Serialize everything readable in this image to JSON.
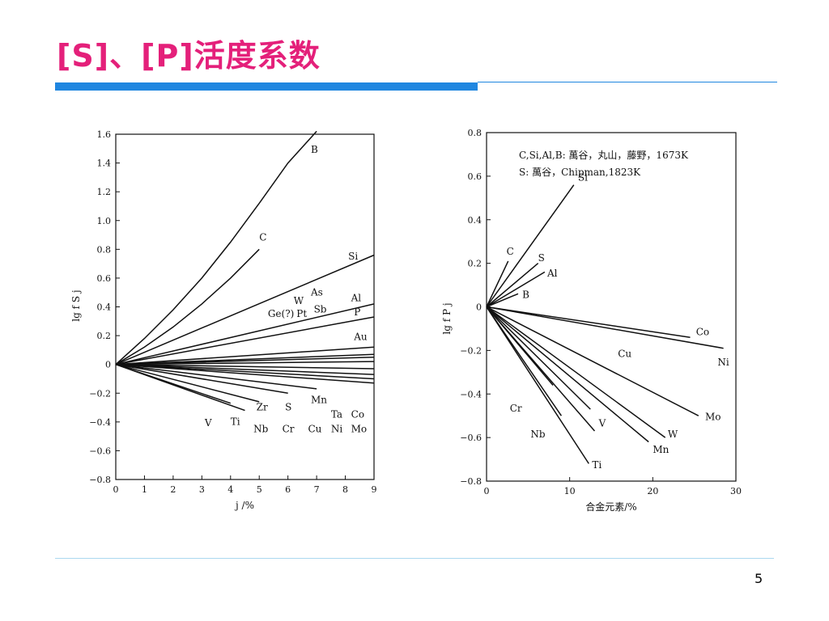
{
  "slide": {
    "title": "[S]、[P]活度系数",
    "page_number": "5",
    "accent_color": "#e4207a",
    "bar_color": "#1f86e0"
  },
  "chart_data": [
    {
      "type": "line",
      "ylabel": "lg f S j",
      "xlabel": "j /%",
      "xlim": [
        0,
        9
      ],
      "ylim": [
        -0.8,
        1.6
      ],
      "x_ticks": [
        0,
        1,
        2,
        3,
        4,
        5,
        6,
        7,
        8,
        9
      ],
      "y_ticks": [
        -0.8,
        -0.6,
        -0.4,
        -0.2,
        0,
        0.2,
        0.4,
        0.6,
        0.8,
        1.0,
        1.2,
        1.4,
        1.6
      ],
      "y_tick_labels": [
        "−0.8",
        "−0.6",
        "−0.4",
        "−0.2",
        "0",
        "0.2",
        "0.4",
        "0.6",
        "0.8",
        "1.0",
        "1.2",
        "1.4",
        "1.6"
      ],
      "series": [
        {
          "name": "B",
          "points": [
            [
              0,
              0
            ],
            [
              1,
              0.18
            ],
            [
              2,
              0.38
            ],
            [
              3,
              0.6
            ],
            [
              4,
              0.85
            ],
            [
              5,
              1.12
            ],
            [
              6,
              1.4
            ],
            [
              7,
              1.62
            ]
          ]
        },
        {
          "name": "C",
          "points": [
            [
              0,
              0
            ],
            [
              1,
              0.12
            ],
            [
              2,
              0.26
            ],
            [
              3,
              0.42
            ],
            [
              4,
              0.6
            ],
            [
              5,
              0.8
            ]
          ]
        },
        {
          "name": "Si",
          "points": [
            [
              0,
              0
            ],
            [
              9,
              0.76
            ]
          ]
        },
        {
          "name": "Al",
          "points": [
            [
              0,
              0
            ],
            [
              9,
              0.42
            ]
          ]
        },
        {
          "name": "P",
          "points": [
            [
              0,
              0
            ],
            [
              9,
              0.33
            ]
          ]
        },
        {
          "name": "Au",
          "points": [
            [
              0,
              0
            ],
            [
              9,
              0.12
            ]
          ]
        },
        {
          "name": "",
          "points": [
            [
              0,
              0
            ],
            [
              9,
              0.07
            ]
          ]
        },
        {
          "name": "",
          "points": [
            [
              0,
              0
            ],
            [
              9,
              0.05
            ]
          ]
        },
        {
          "name": "",
          "points": [
            [
              0,
              0
            ],
            [
              9,
              0.02
            ]
          ]
        },
        {
          "name": "",
          "points": [
            [
              0,
              0
            ],
            [
              9,
              -0.03
            ]
          ]
        },
        {
          "name": "Co",
          "points": [
            [
              0,
              0
            ],
            [
              9,
              -0.07
            ]
          ]
        },
        {
          "name": "",
          "points": [
            [
              0,
              0
            ],
            [
              9,
              -0.1
            ]
          ]
        },
        {
          "name": "Mo",
          "points": [
            [
              0,
              0
            ],
            [
              9,
              -0.13
            ]
          ]
        },
        {
          "name": "Mn",
          "points": [
            [
              0,
              0
            ],
            [
              7,
              -0.17
            ]
          ]
        },
        {
          "name": "S",
          "points": [
            [
              0,
              0
            ],
            [
              6,
              -0.2
            ]
          ]
        },
        {
          "name": "Zr",
          "points": [
            [
              0,
              0
            ],
            [
              5,
              -0.26
            ]
          ]
        },
        {
          "name": "Ti",
          "points": [
            [
              0,
              0
            ],
            [
              4.5,
              -0.32
            ]
          ]
        },
        {
          "name": "V",
          "points": [
            [
              0,
              0
            ],
            [
              4,
              -0.27
            ]
          ]
        }
      ],
      "labels": [
        {
          "text": "B",
          "x": 6.8,
          "y": 1.47
        },
        {
          "text": "C",
          "x": 5.0,
          "y": 0.86
        },
        {
          "text": "Si",
          "x": 8.1,
          "y": 0.73
        },
        {
          "text": "As",
          "x": 6.8,
          "y": 0.48
        },
        {
          "text": "W",
          "x": 6.2,
          "y": 0.42
        },
        {
          "text": "Al",
          "x": 8.2,
          "y": 0.44
        },
        {
          "text": "Ge(?)",
          "x": 5.3,
          "y": 0.33
        },
        {
          "text": "Pt",
          "x": 6.3,
          "y": 0.33
        },
        {
          "text": "Sb",
          "x": 6.9,
          "y": 0.36
        },
        {
          "text": "P",
          "x": 8.3,
          "y": 0.34
        },
        {
          "text": "Au",
          "x": 8.3,
          "y": 0.17
        },
        {
          "text": "Mn",
          "x": 6.8,
          "y": -0.27
        },
        {
          "text": "Zr",
          "x": 4.9,
          "y": -0.32
        },
        {
          "text": "S",
          "x": 5.9,
          "y": -0.32
        },
        {
          "text": "Ta",
          "x": 7.5,
          "y": -0.37
        },
        {
          "text": "Co",
          "x": 8.2,
          "y": -0.37
        },
        {
          "text": "V",
          "x": 3.1,
          "y": -0.43
        },
        {
          "text": "Ti",
          "x": 4.0,
          "y": -0.42
        },
        {
          "text": "Nb",
          "x": 4.8,
          "y": -0.47
        },
        {
          "text": "Cr",
          "x": 5.8,
          "y": -0.47
        },
        {
          "text": "Cu",
          "x": 6.7,
          "y": -0.47
        },
        {
          "text": "Ni",
          "x": 7.5,
          "y": -0.47
        },
        {
          "text": "Mo",
          "x": 8.2,
          "y": -0.47
        }
      ]
    },
    {
      "type": "line",
      "ylabel": "lg f P j",
      "xlabel": "合金元素/%",
      "xlim": [
        0,
        30
      ],
      "ylim": [
        -0.8,
        0.8
      ],
      "x_ticks": [
        0,
        10,
        20,
        30
      ],
      "y_ticks": [
        -0.8,
        -0.6,
        -0.4,
        -0.2,
        0,
        0.2,
        0.4,
        0.6,
        0.8
      ],
      "y_tick_labels": [
        "−0.8",
        "−0.6",
        "−0.4",
        "−0.2",
        "0",
        "0.2",
        "0.4",
        "0.6",
        "0.8"
      ],
      "annotations": [
        "C,Si,Al,B: 萬谷，丸山，藤野，1673K",
        "S: 萬谷，Chipman,1823K"
      ],
      "series": [
        {
          "name": "Si",
          "points": [
            [
              0,
              0
            ],
            [
              10.5,
              0.56
            ]
          ]
        },
        {
          "name": "C",
          "points": [
            [
              0,
              0
            ],
            [
              2.6,
              0.21
            ]
          ]
        },
        {
          "name": "S",
          "points": [
            [
              0,
              0
            ],
            [
              6.2,
              0.2
            ]
          ]
        },
        {
          "name": "Al",
          "points": [
            [
              0,
              0
            ],
            [
              7,
              0.16
            ]
          ]
        },
        {
          "name": "B",
          "points": [
            [
              0,
              0
            ],
            [
              3.8,
              0.06
            ]
          ]
        },
        {
          "name": "Co",
          "points": [
            [
              0,
              0
            ],
            [
              24.5,
              -0.14
            ]
          ]
        },
        {
          "name": "Ni",
          "points": [
            [
              0,
              0
            ],
            [
              28.5,
              -0.19
            ]
          ]
        },
        {
          "name": "Mo",
          "points": [
            [
              0,
              0
            ],
            [
              25.5,
              -0.5
            ]
          ]
        },
        {
          "name": "W",
          "points": [
            [
              0,
              0
            ],
            [
              21.5,
              -0.6
            ]
          ]
        },
        {
          "name": "Mn",
          "points": [
            [
              0,
              0
            ],
            [
              19.5,
              -0.62
            ]
          ]
        },
        {
          "name": "Cu",
          "points": [
            [
              0,
              0
            ],
            [
              12.5,
              -0.47
            ]
          ]
        },
        {
          "name": "V",
          "points": [
            [
              0,
              0
            ],
            [
              13,
              -0.57
            ]
          ]
        },
        {
          "name": "Ti",
          "points": [
            [
              0,
              0
            ],
            [
              12.3,
              -0.72
            ]
          ]
        },
        {
          "name": "Nb",
          "points": [
            [
              0,
              0
            ],
            [
              9,
              -0.5
            ]
          ]
        },
        {
          "name": "Cr",
          "points": [
            [
              0,
              0
            ],
            [
              8,
              -0.36
            ]
          ]
        }
      ],
      "labels": [
        {
          "text": "Si",
          "x": 11.0,
          "y": 0.58
        },
        {
          "text": "C",
          "x": 2.4,
          "y": 0.24
        },
        {
          "text": "S",
          "x": 6.2,
          "y": 0.21
        },
        {
          "text": "Al",
          "x": 7.3,
          "y": 0.14
        },
        {
          "text": "B",
          "x": 4.3,
          "y": 0.04
        },
        {
          "text": "Co",
          "x": 25.2,
          "y": -0.13
        },
        {
          "text": "Ni",
          "x": 27.8,
          "y": -0.27
        },
        {
          "text": "Cu",
          "x": 15.8,
          "y": -0.23
        },
        {
          "text": "Mo",
          "x": 26.3,
          "y": -0.52
        },
        {
          "text": "W",
          "x": 21.8,
          "y": -0.6
        },
        {
          "text": "Mn",
          "x": 20.0,
          "y": -0.67
        },
        {
          "text": "V",
          "x": 13.5,
          "y": -0.55
        },
        {
          "text": "Cr",
          "x": 2.8,
          "y": -0.48
        },
        {
          "text": "Nb",
          "x": 5.3,
          "y": -0.6
        },
        {
          "text": "Ti",
          "x": 12.7,
          "y": -0.74
        }
      ]
    }
  ]
}
